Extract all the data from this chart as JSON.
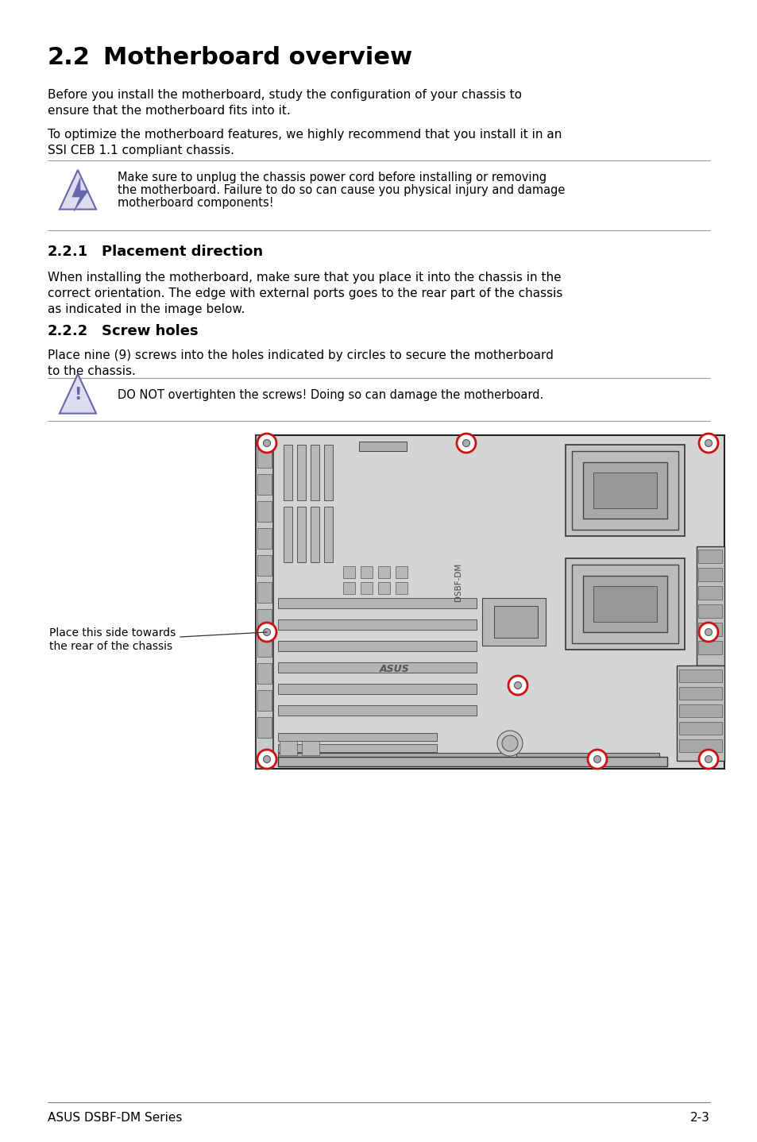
{
  "title_num": "2.2",
  "title_text": "Motherboard overview",
  "para1_line1": "Before you install the motherboard, study the configuration of your chassis to",
  "para1_line2": "ensure that the motherboard fits into it.",
  "para2_line1": "To optimize the motherboard features, we highly recommend that you install it in an",
  "para2_line2": "SSI CEB 1.1 compliant chassis.",
  "warning1_line1": "Make sure to unplug the chassis power cord before installing or removing",
  "warning1_line2": "the motherboard. Failure to do so can cause you physical injury and damage",
  "warning1_line3": "motherboard components!",
  "section221_num": "2.2.1",
  "section221_text": "Placement direction",
  "para3_line1": "When installing the motherboard, make sure that you place it into the chassis in the",
  "para3_line2": "correct orientation. The edge with external ports goes to the rear part of the chassis",
  "para3_line3": "as indicated in the image below.",
  "section222_num": "2.2.2",
  "section222_text": "Screw holes",
  "para4_line1": "Place nine (9) screws into the holes indicated by circles to secure the motherboard",
  "para4_line2": "to the chassis.",
  "warning2_text": "DO NOT overtighten the screws! Doing so can damage the motherboard.",
  "label_line1": "Place this side towards",
  "label_line2": "the rear of the chassis",
  "footer_left": "ASUS DSBF-DM Series",
  "footer_right": "2-3",
  "bg_color": "#ffffff",
  "text_color": "#000000",
  "rule_color": "#999999",
  "board_fill": "#d4d4d4",
  "board_edge": "#222222",
  "screw_red": "#cc1111",
  "warn_icon_fill": "#ddddf0",
  "warn_icon_edge": "#6666aa",
  "component_dark": "#b0b0b0",
  "component_mid": "#c0c0c0",
  "component_light": "#d0d0d0"
}
